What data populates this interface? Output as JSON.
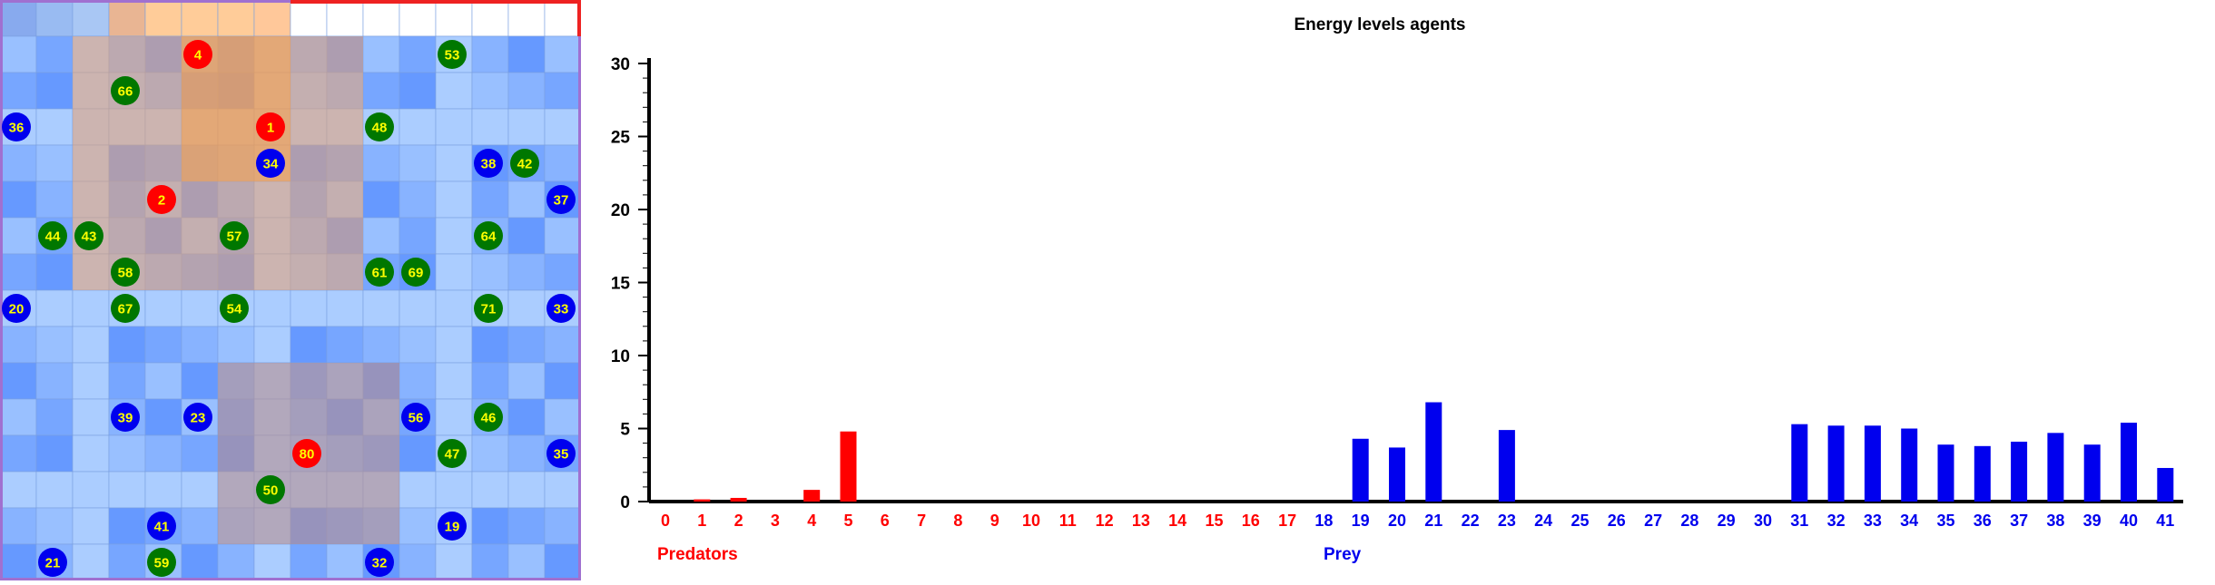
{
  "grid": {
    "columns": 16,
    "rows": 16,
    "top_row_colors": [
      "#88aaee",
      "#99bbf2",
      "#a9c7f4",
      "#e9b593",
      "#ffcc99",
      "#ffcc99",
      "#ffcc99",
      "#ffc89a",
      "#ffffff",
      "#ffffff",
      "#ffffff",
      "#ffffff",
      "#ffffff",
      "#ffffff",
      "#ffffff",
      "#ffffff"
    ],
    "agents": [
      {
        "id": "4",
        "kind": "predator",
        "col": 5,
        "row": 1
      },
      {
        "id": "1",
        "kind": "predator",
        "col": 7,
        "row": 3
      },
      {
        "id": "2",
        "kind": "predator",
        "col": 4,
        "row": 5
      },
      {
        "id": "80",
        "kind": "predator",
        "col": 8,
        "row": 12
      },
      {
        "id": "53",
        "kind": "grazer",
        "col": 12,
        "row": 1
      },
      {
        "id": "66",
        "kind": "grazer",
        "col": 3,
        "row": 2
      },
      {
        "id": "48",
        "kind": "grazer",
        "col": 10,
        "row": 3
      },
      {
        "id": "42",
        "kind": "grazer",
        "col": 14,
        "row": 4
      },
      {
        "id": "44",
        "kind": "grazer",
        "col": 1,
        "row": 6
      },
      {
        "id": "43",
        "kind": "grazer",
        "col": 2,
        "row": 6
      },
      {
        "id": "57",
        "kind": "grazer",
        "col": 6,
        "row": 6
      },
      {
        "id": "64",
        "kind": "grazer",
        "col": 13,
        "row": 6
      },
      {
        "id": "58",
        "kind": "grazer",
        "col": 3,
        "row": 7
      },
      {
        "id": "61",
        "kind": "grazer",
        "col": 10,
        "row": 7
      },
      {
        "id": "69",
        "kind": "grazer",
        "col": 11,
        "row": 7
      },
      {
        "id": "67",
        "kind": "grazer",
        "col": 3,
        "row": 8
      },
      {
        "id": "54",
        "kind": "grazer",
        "col": 6,
        "row": 8
      },
      {
        "id": "71",
        "kind": "grazer",
        "col": 13,
        "row": 8
      },
      {
        "id": "46",
        "kind": "grazer",
        "col": 13,
        "row": 11
      },
      {
        "id": "47",
        "kind": "grazer",
        "col": 12,
        "row": 12
      },
      {
        "id": "50",
        "kind": "grazer",
        "col": 7,
        "row": 13
      },
      {
        "id": "59",
        "kind": "grazer",
        "col": 4,
        "row": 15
      },
      {
        "id": "36",
        "kind": "prey",
        "col": 0,
        "row": 3
      },
      {
        "id": "34",
        "kind": "prey",
        "col": 7,
        "row": 4
      },
      {
        "id": "38",
        "kind": "prey",
        "col": 13,
        "row": 4
      },
      {
        "id": "37",
        "kind": "prey",
        "col": 15,
        "row": 5
      },
      {
        "id": "20",
        "kind": "prey",
        "col": 0,
        "row": 8
      },
      {
        "id": "33",
        "kind": "prey",
        "col": 15,
        "row": 8
      },
      {
        "id": "39",
        "kind": "prey",
        "col": 3,
        "row": 11
      },
      {
        "id": "23",
        "kind": "prey",
        "col": 5,
        "row": 11
      },
      {
        "id": "56",
        "kind": "prey",
        "col": 11,
        "row": 11
      },
      {
        "id": "35",
        "kind": "prey",
        "col": 15,
        "row": 12
      },
      {
        "id": "41",
        "kind": "prey",
        "col": 4,
        "row": 14
      },
      {
        "id": "19",
        "kind": "prey",
        "col": 12,
        "row": 14
      },
      {
        "id": "21",
        "kind": "prey",
        "col": 1,
        "row": 15
      },
      {
        "id": "32",
        "kind": "prey",
        "col": 10,
        "row": 15
      }
    ],
    "colors": {
      "predator": "#ff0000",
      "prey": "#0000ee",
      "grazer": "#007700",
      "agent_label": "#ffff00"
    }
  },
  "chart_data": {
    "type": "bar",
    "title": "Energy levels agents",
    "categories": [
      "0",
      "1",
      "2",
      "3",
      "4",
      "5",
      "6",
      "7",
      "8",
      "9",
      "10",
      "11",
      "12",
      "13",
      "14",
      "15",
      "16",
      "17",
      "18",
      "19",
      "20",
      "21",
      "22",
      "23",
      "24",
      "25",
      "26",
      "27",
      "28",
      "29",
      "30",
      "31",
      "32",
      "33",
      "34",
      "35",
      "36",
      "37",
      "38",
      "39",
      "40",
      "41"
    ],
    "values": [
      0,
      0.15,
      0.25,
      0,
      0.8,
      4.8,
      0,
      0,
      0,
      0,
      0,
      0,
      0,
      0,
      0,
      0,
      0,
      0,
      0,
      4.3,
      3.7,
      6.8,
      0,
      4.9,
      0,
      0,
      0,
      0,
      0,
      0,
      0,
      5.3,
      5.2,
      5.2,
      5.0,
      3.9,
      3.8,
      4.1,
      4.7,
      3.9,
      5.4,
      2.3
    ],
    "groups": [
      {
        "name": "Predators",
        "from": 0,
        "to": 17,
        "color": "#ff0000"
      },
      {
        "name": "Prey",
        "from": 18,
        "to": 41,
        "color": "#0000ee"
      }
    ],
    "ylim": [
      0,
      30
    ],
    "yticks": [
      "0",
      "5",
      "10",
      "15",
      "20",
      "25",
      "30"
    ],
    "xlabel": "",
    "ylabel": ""
  }
}
